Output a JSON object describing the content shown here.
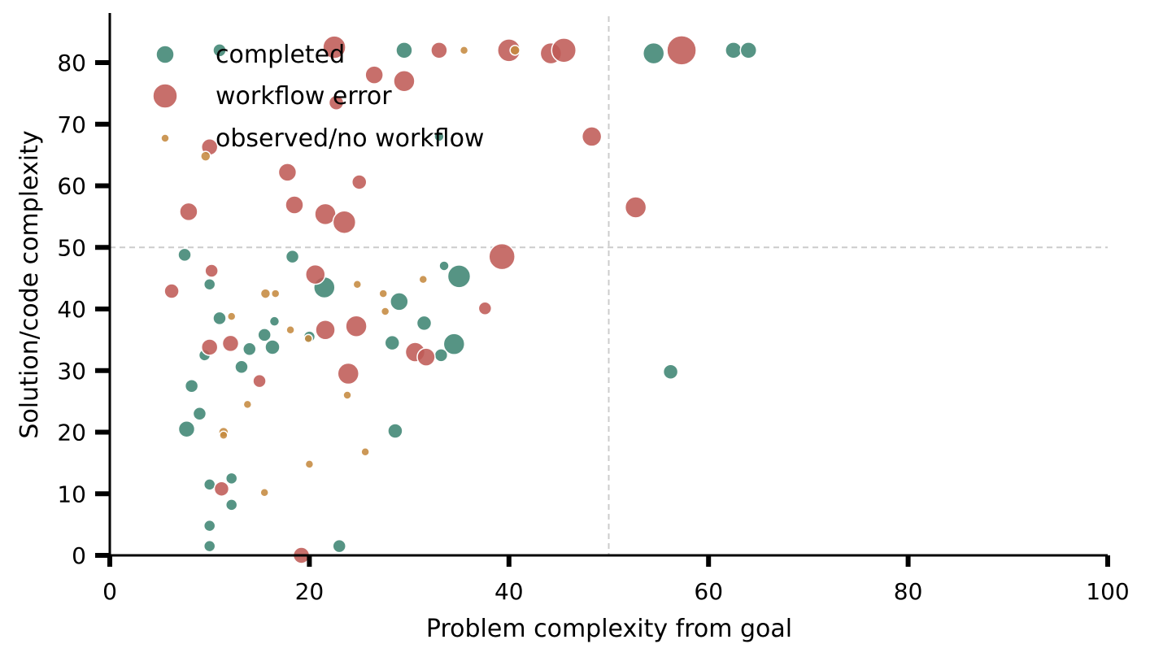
{
  "chart_data": {
    "type": "scatter",
    "xlabel": "Problem complexity from goal",
    "ylabel": "Solution/code complexity",
    "xlim": [
      0,
      100
    ],
    "ylim": [
      0,
      88
    ],
    "x_ticks": [
      0,
      20,
      40,
      60,
      80,
      100
    ],
    "y_ticks": [
      0,
      10,
      20,
      30,
      40,
      50,
      60,
      70,
      80
    ],
    "reference_lines": {
      "x": 50,
      "y": 50
    },
    "grid": false,
    "legend_position": "top-left",
    "colors": {
      "completed": "#3f8573",
      "workflow error": "#bf5b57",
      "observed/no workflow": "#c58a40"
    },
    "series": [
      {
        "name": "completed",
        "points": [
          {
            "x": 11,
            "y": 82,
            "s": 8
          },
          {
            "x": 29.5,
            "y": 82,
            "s": 10
          },
          {
            "x": 54.5,
            "y": 81.5,
            "s": 13
          },
          {
            "x": 62.5,
            "y": 82,
            "s": 10
          },
          {
            "x": 64,
            "y": 82,
            "s": 10
          },
          {
            "x": 33,
            "y": 68,
            "s": 6
          },
          {
            "x": 7.5,
            "y": 48.8,
            "s": 8
          },
          {
            "x": 18.3,
            "y": 48.5,
            "s": 8
          },
          {
            "x": 33.5,
            "y": 47,
            "s": 6
          },
          {
            "x": 35,
            "y": 45.3,
            "s": 14
          },
          {
            "x": 10,
            "y": 44,
            "s": 7
          },
          {
            "x": 21.5,
            "y": 43.5,
            "s": 13
          },
          {
            "x": 29,
            "y": 41.2,
            "s": 11
          },
          {
            "x": 11,
            "y": 38.5,
            "s": 8
          },
          {
            "x": 16.5,
            "y": 38,
            "s": 6
          },
          {
            "x": 31.5,
            "y": 37.7,
            "s": 9
          },
          {
            "x": 15.5,
            "y": 35.8,
            "s": 8
          },
          {
            "x": 20,
            "y": 35.5,
            "s": 7
          },
          {
            "x": 14,
            "y": 33.5,
            "s": 8
          },
          {
            "x": 16.3,
            "y": 33.8,
            "s": 9
          },
          {
            "x": 28.3,
            "y": 34.5,
            "s": 9
          },
          {
            "x": 34.5,
            "y": 34.3,
            "s": 13
          },
          {
            "x": 9.5,
            "y": 32.5,
            "s": 7
          },
          {
            "x": 33.2,
            "y": 32.5,
            "s": 8
          },
          {
            "x": 13.2,
            "y": 30.6,
            "s": 8
          },
          {
            "x": 56.2,
            "y": 29.8,
            "s": 9
          },
          {
            "x": 8.2,
            "y": 27.5,
            "s": 8
          },
          {
            "x": 9,
            "y": 23,
            "s": 8
          },
          {
            "x": 7.7,
            "y": 20.5,
            "s": 10
          },
          {
            "x": 28.6,
            "y": 20.2,
            "s": 9
          },
          {
            "x": 12.2,
            "y": 12.5,
            "s": 7
          },
          {
            "x": 10,
            "y": 11.5,
            "s": 7
          },
          {
            "x": 12.2,
            "y": 8.2,
            "s": 7
          },
          {
            "x": 10,
            "y": 4.8,
            "s": 7
          },
          {
            "x": 10,
            "y": 1.5,
            "s": 7
          },
          {
            "x": 23,
            "y": 1.5,
            "s": 8
          }
        ]
      },
      {
        "name": "workflow error",
        "points": [
          {
            "x": 22.5,
            "y": 82.5,
            "s": 14
          },
          {
            "x": 33,
            "y": 82,
            "s": 10
          },
          {
            "x": 40,
            "y": 82,
            "s": 14
          },
          {
            "x": 44.2,
            "y": 81.5,
            "s": 13
          },
          {
            "x": 45.5,
            "y": 82,
            "s": 15
          },
          {
            "x": 57.3,
            "y": 82,
            "s": 18
          },
          {
            "x": 26.5,
            "y": 78,
            "s": 11
          },
          {
            "x": 29.5,
            "y": 77,
            "s": 13
          },
          {
            "x": 22.7,
            "y": 73.5,
            "s": 9
          },
          {
            "x": 48.3,
            "y": 68,
            "s": 12
          },
          {
            "x": 10,
            "y": 66.3,
            "s": 10
          },
          {
            "x": 17.8,
            "y": 62.2,
            "s": 11
          },
          {
            "x": 25,
            "y": 60.6,
            "s": 9
          },
          {
            "x": 18.5,
            "y": 56.9,
            "s": 11
          },
          {
            "x": 52.7,
            "y": 56.5,
            "s": 13
          },
          {
            "x": 7.9,
            "y": 55.8,
            "s": 11
          },
          {
            "x": 21.6,
            "y": 55.4,
            "s": 13
          },
          {
            "x": 23.5,
            "y": 54.1,
            "s": 14
          },
          {
            "x": 39.3,
            "y": 48.5,
            "s": 16
          },
          {
            "x": 10.2,
            "y": 46.2,
            "s": 8
          },
          {
            "x": 20.6,
            "y": 45.6,
            "s": 12
          },
          {
            "x": 6.2,
            "y": 42.9,
            "s": 9
          },
          {
            "x": 37.6,
            "y": 40.1,
            "s": 8
          },
          {
            "x": 24.7,
            "y": 37.2,
            "s": 13
          },
          {
            "x": 21.6,
            "y": 36.6,
            "s": 12
          },
          {
            "x": 12.1,
            "y": 34.4,
            "s": 10
          },
          {
            "x": 10,
            "y": 33.8,
            "s": 10
          },
          {
            "x": 30.6,
            "y": 33,
            "s": 12
          },
          {
            "x": 31.7,
            "y": 32.2,
            "s": 11
          },
          {
            "x": 15,
            "y": 28.3,
            "s": 8
          },
          {
            "x": 23.9,
            "y": 29.5,
            "s": 13
          },
          {
            "x": 11.2,
            "y": 10.8,
            "s": 9
          },
          {
            "x": 19.2,
            "y": 0,
            "s": 10
          }
        ]
      },
      {
        "name": "observed/no workflow",
        "points": [
          {
            "x": 35.5,
            "y": 82,
            "s": 5
          },
          {
            "x": 40.6,
            "y": 82,
            "s": 6
          },
          {
            "x": 9.6,
            "y": 64.8,
            "s": 6
          },
          {
            "x": 24.8,
            "y": 44,
            "s": 5
          },
          {
            "x": 31.4,
            "y": 44.8,
            "s": 5
          },
          {
            "x": 15.6,
            "y": 42.5,
            "s": 6
          },
          {
            "x": 16.6,
            "y": 42.5,
            "s": 5
          },
          {
            "x": 27.4,
            "y": 42.5,
            "s": 5
          },
          {
            "x": 27.6,
            "y": 39.6,
            "s": 5
          },
          {
            "x": 12.2,
            "y": 38.8,
            "s": 5
          },
          {
            "x": 18.1,
            "y": 36.6,
            "s": 5
          },
          {
            "x": 19.9,
            "y": 35.2,
            "s": 5
          },
          {
            "x": 23.8,
            "y": 26,
            "s": 5
          },
          {
            "x": 13.8,
            "y": 24.5,
            "s": 5
          },
          {
            "x": 11.4,
            "y": 20,
            "s": 6
          },
          {
            "x": 11.4,
            "y": 19.5,
            "s": 5
          },
          {
            "x": 25.6,
            "y": 16.8,
            "s": 5
          },
          {
            "x": 20,
            "y": 14.8,
            "s": 5
          },
          {
            "x": 15.5,
            "y": 10.2,
            "s": 5
          }
        ]
      }
    ]
  }
}
